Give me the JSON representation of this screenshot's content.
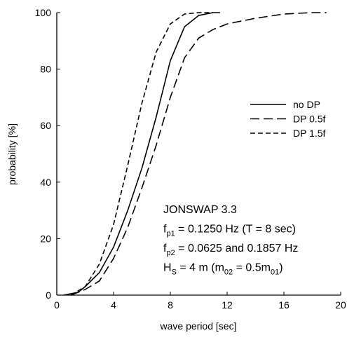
{
  "chart_data": {
    "type": "line",
    "xlabel": "wave period [sec]",
    "ylabel": "probability [%]",
    "xlim": [
      0,
      20
    ],
    "xticks": [
      0,
      4,
      8,
      12,
      16,
      20
    ],
    "ylim": [
      0,
      100
    ],
    "yticks": [
      0,
      20,
      40,
      60,
      80,
      100
    ],
    "series": [
      {
        "name": "no DP",
        "color": "#000000",
        "dash": "solid",
        "x": [
          0.5,
          1.5,
          2,
          3,
          4,
          5,
          6,
          7,
          8,
          9,
          10,
          11,
          11.5
        ],
        "values": [
          0,
          1,
          3,
          8,
          17,
          30,
          45,
          63,
          83,
          95,
          99,
          100,
          100
        ]
      },
      {
        "name": "DP 0.5f",
        "color": "#000000",
        "dash": "long",
        "x": [
          1,
          2,
          3,
          4,
          5,
          6,
          7,
          8,
          9,
          10,
          11,
          12,
          14,
          16,
          18,
          19
        ],
        "values": [
          0,
          2,
          5,
          13,
          24,
          38,
          53,
          70,
          84,
          91,
          94,
          96,
          98,
          99.5,
          100,
          100
        ]
      },
      {
        "name": "DP 1.5f",
        "color": "#000000",
        "dash": "short",
        "x": [
          1,
          2,
          3,
          4,
          5,
          6,
          7,
          8,
          9,
          10,
          11
        ],
        "values": [
          0,
          3,
          11,
          25,
          46,
          68,
          86,
          96,
          99.5,
          100,
          100
        ]
      }
    ],
    "annotations": [
      [
        {
          "text": "JONSWAP 3.3",
          "sub": false
        }
      ],
      [
        {
          "text": "f",
          "sub": false
        },
        {
          "text": "p1",
          "sub": true
        },
        {
          "text": " =  0.1250 Hz (T = 8 sec)",
          "sub": false
        }
      ],
      [
        {
          "text": "f",
          "sub": false
        },
        {
          "text": "p2",
          "sub": true
        },
        {
          "text": " =  0.0625 and 0.1857 Hz",
          "sub": false
        }
      ],
      [
        {
          "text": "H",
          "sub": false
        },
        {
          "text": "S",
          "sub": true
        },
        {
          "text": " = 4 m (m",
          "sub": false
        },
        {
          "text": "02",
          "sub": true
        },
        {
          "text": " = 0.5m",
          "sub": false
        },
        {
          "text": "01",
          "sub": true
        },
        {
          "text": ")",
          "sub": false
        }
      ]
    ]
  }
}
